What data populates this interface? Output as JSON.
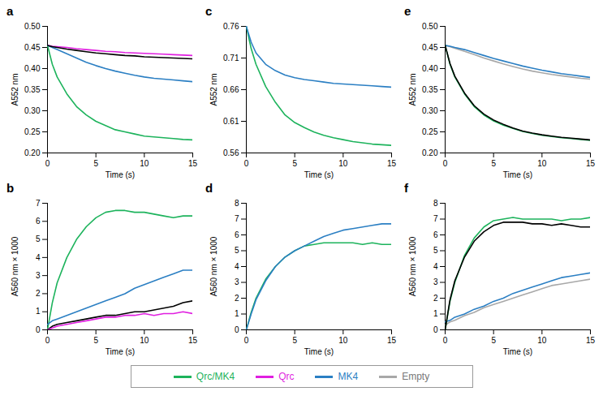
{
  "chart_data": [
    {
      "type": "line",
      "title": "a",
      "xlabel": "Time (s)",
      "ylabel": "A552 nm",
      "x": [
        0,
        0.5,
        1,
        2,
        3,
        4,
        5,
        6,
        7,
        8,
        9,
        10,
        11,
        12,
        13,
        14,
        15
      ],
      "xlim": [
        0,
        15
      ],
      "xticks": [
        0,
        5,
        10,
        15
      ],
      "ylim": [
        0.2,
        0.5
      ],
      "yticks": [
        {
          "value": 0.2,
          "label": "0.20"
        },
        0.25,
        {
          "value": 0.3,
          "label": "0.30"
        },
        0.35,
        {
          "value": 0.4,
          "label": "0.40"
        },
        0.45,
        {
          "value": 0.5,
          "label": "0.50"
        }
      ],
      "series": [
        {
          "name": "Qrc/MK4",
          "color": "#1db35c",
          "values": [
            0.455,
            0.41,
            0.38,
            0.34,
            0.31,
            0.29,
            0.275,
            0.265,
            0.255,
            0.25,
            0.245,
            0.24,
            0.238,
            0.236,
            0.234,
            0.232,
            0.231
          ]
        },
        {
          "name": "Qrc",
          "color": "#e01fe0",
          "values": [
            0.455,
            0.453,
            0.452,
            0.45,
            0.447,
            0.445,
            0.443,
            0.441,
            0.44,
            0.438,
            0.437,
            0.436,
            0.435,
            0.434,
            0.433,
            0.432,
            0.431
          ]
        },
        {
          "name": "MK4",
          "color": "#2b7fc3",
          "values": [
            0.455,
            0.45,
            0.445,
            0.435,
            0.425,
            0.415,
            0.407,
            0.4,
            0.394,
            0.389,
            0.384,
            0.38,
            0.377,
            0.375,
            0.373,
            0.371,
            0.369
          ]
        },
        {
          "color": "#000000",
          "values": [
            0.455,
            0.452,
            0.45,
            0.446,
            0.443,
            0.44,
            0.437,
            0.435,
            0.433,
            0.431,
            0.43,
            0.428,
            0.427,
            0.426,
            0.425,
            0.424,
            0.423
          ]
        }
      ]
    },
    {
      "type": "line",
      "title": "c",
      "xlabel": "Time (s)",
      "ylabel": "A552 nm",
      "x": [
        0,
        0.5,
        1,
        2,
        3,
        4,
        5,
        6,
        7,
        8,
        9,
        10,
        11,
        12,
        13,
        14,
        15
      ],
      "xlim": [
        0,
        15
      ],
      "xticks": [
        0,
        5,
        10,
        15
      ],
      "ylim": [
        0.56,
        0.76
      ],
      "yticks": [
        0.56,
        0.61,
        0.66,
        0.71,
        0.76
      ],
      "series": [
        {
          "name": "Qrc/MK4",
          "color": "#1db35c",
          "values": [
            0.76,
            0.725,
            0.7,
            0.665,
            0.64,
            0.62,
            0.608,
            0.6,
            0.593,
            0.588,
            0.584,
            0.581,
            0.578,
            0.576,
            0.574,
            0.573,
            0.572
          ]
        },
        {
          "name": "MK4",
          "color": "#2b7fc3",
          "values": [
            0.76,
            0.735,
            0.718,
            0.7,
            0.69,
            0.683,
            0.679,
            0.676,
            0.674,
            0.672,
            0.67,
            0.669,
            0.668,
            0.667,
            0.666,
            0.665,
            0.664
          ]
        }
      ]
    },
    {
      "type": "line",
      "title": "e",
      "xlabel": "Time (s)",
      "ylabel": "A552 nm",
      "x": [
        0,
        0.5,
        1,
        2,
        3,
        4,
        5,
        6,
        7,
        8,
        9,
        10,
        11,
        12,
        13,
        14,
        15
      ],
      "xlim": [
        0,
        15
      ],
      "xticks": [
        0,
        5,
        10,
        15
      ],
      "ylim": [
        0.2,
        0.5
      ],
      "yticks": [
        {
          "value": 0.2,
          "label": "0.20"
        },
        0.25,
        {
          "value": 0.3,
          "label": "0.30"
        },
        0.35,
        {
          "value": 0.4,
          "label": "0.40"
        },
        0.45,
        {
          "value": 0.5,
          "label": "0.50"
        }
      ],
      "series": [
        {
          "name": "Empty",
          "color": "#a8a8a8",
          "values": [
            0.455,
            0.452,
            0.448,
            0.441,
            0.433,
            0.425,
            0.418,
            0.411,
            0.405,
            0.399,
            0.394,
            0.39,
            0.386,
            0.383,
            0.38,
            0.377,
            0.375
          ]
        },
        {
          "name": "MK4",
          "color": "#2b7fc3",
          "values": [
            0.455,
            0.453,
            0.45,
            0.445,
            0.438,
            0.431,
            0.424,
            0.418,
            0.412,
            0.406,
            0.401,
            0.396,
            0.392,
            0.388,
            0.385,
            0.382,
            0.379
          ]
        },
        {
          "name": "Qrc/MK4",
          "color": "#1db35c",
          "values": [
            0.455,
            0.41,
            0.38,
            0.34,
            0.31,
            0.29,
            0.276,
            0.266,
            0.258,
            0.251,
            0.246,
            0.242,
            0.239,
            0.236,
            0.234,
            0.232,
            0.23
          ]
        },
        {
          "color": "#000000",
          "values": [
            0.455,
            0.412,
            0.382,
            0.342,
            0.312,
            0.292,
            0.278,
            0.268,
            0.259,
            0.252,
            0.247,
            0.243,
            0.24,
            0.237,
            0.235,
            0.233,
            0.231
          ]
        }
      ]
    },
    {
      "type": "line",
      "title": "b",
      "xlabel": "Time (s)",
      "ylabel": "A560 nm × 1000",
      "x": [
        0,
        0.5,
        1,
        2,
        3,
        4,
        5,
        6,
        7,
        8,
        9,
        10,
        11,
        12,
        13,
        14,
        15
      ],
      "xlim": [
        0,
        15
      ],
      "xticks": [
        0,
        5,
        10,
        15
      ],
      "ylim": [
        0,
        7
      ],
      "yticks": [
        0,
        1,
        2,
        3,
        4,
        5,
        6,
        7
      ],
      "series": [
        {
          "name": "Qrc/MK4",
          "color": "#1db35c",
          "values": [
            0,
            1.5,
            2.6,
            4.0,
            5.0,
            5.7,
            6.2,
            6.5,
            6.6,
            6.6,
            6.5,
            6.5,
            6.4,
            6.3,
            6.2,
            6.3,
            6.3
          ]
        },
        {
          "name": "MK4",
          "color": "#2b7fc3",
          "values": [
            0.3,
            0.5,
            0.6,
            0.8,
            1.0,
            1.2,
            1.4,
            1.6,
            1.8,
            2.0,
            2.3,
            2.5,
            2.7,
            2.9,
            3.1,
            3.3,
            3.3
          ]
        },
        {
          "color": "#000000",
          "values": [
            0,
            0.2,
            0.3,
            0.4,
            0.5,
            0.6,
            0.7,
            0.8,
            0.8,
            0.9,
            1.0,
            1.0,
            1.1,
            1.2,
            1.3,
            1.5,
            1.6
          ]
        },
        {
          "name": "Qrc",
          "color": "#e01fe0",
          "values": [
            0,
            0.1,
            0.2,
            0.3,
            0.4,
            0.5,
            0.6,
            0.7,
            0.7,
            0.8,
            0.8,
            0.9,
            0.8,
            0.9,
            0.9,
            1.0,
            0.9
          ]
        }
      ]
    },
    {
      "type": "line",
      "title": "d",
      "xlabel": "Time (s)",
      "ylabel": "A560 nm × 1000",
      "x": [
        0,
        0.5,
        1,
        2,
        3,
        4,
        5,
        6,
        7,
        8,
        9,
        10,
        11,
        12,
        13,
        14,
        15
      ],
      "xlim": [
        0,
        15
      ],
      "xticks": [
        0,
        5,
        10,
        15
      ],
      "ylim": [
        0,
        8
      ],
      "yticks": [
        0,
        1,
        2,
        3,
        4,
        5,
        6,
        7,
        8
      ],
      "series": [
        {
          "name": "Qrc/MK4",
          "color": "#1db35c",
          "values": [
            0,
            1.1,
            2.0,
            3.2,
            4.0,
            4.6,
            5.0,
            5.3,
            5.4,
            5.5,
            5.5,
            5.5,
            5.5,
            5.4,
            5.5,
            5.4,
            5.4
          ]
        },
        {
          "name": "MK4",
          "color": "#2b7fc3",
          "values": [
            0,
            1.0,
            1.9,
            3.1,
            4.0,
            4.6,
            5.0,
            5.3,
            5.6,
            5.9,
            6.1,
            6.3,
            6.4,
            6.5,
            6.6,
            6.7,
            6.7
          ]
        }
      ]
    },
    {
      "type": "line",
      "title": "f",
      "xlabel": "Time (s)",
      "ylabel": "A560 nm × 1000",
      "x": [
        0,
        0.5,
        1,
        2,
        3,
        4,
        5,
        6,
        7,
        8,
        9,
        10,
        11,
        12,
        13,
        14,
        15
      ],
      "xlim": [
        0,
        15
      ],
      "xticks": [
        0,
        5,
        10,
        15
      ],
      "ylim": [
        0,
        8
      ],
      "yticks": [
        0,
        1,
        2,
        3,
        4,
        5,
        6,
        7,
        8
      ],
      "series": [
        {
          "name": "Empty",
          "color": "#a8a8a8",
          "values": [
            0.3,
            0.5,
            0.6,
            0.9,
            1.1,
            1.4,
            1.6,
            1.8,
            2.0,
            2.2,
            2.4,
            2.6,
            2.8,
            2.9,
            3.0,
            3.1,
            3.2
          ]
        },
        {
          "name": "MK4",
          "color": "#2b7fc3",
          "values": [
            0.5,
            0.6,
            0.8,
            1.0,
            1.3,
            1.5,
            1.8,
            2.0,
            2.3,
            2.5,
            2.7,
            2.9,
            3.1,
            3.3,
            3.4,
            3.5,
            3.6
          ]
        },
        {
          "name": "Qrc/MK4",
          "color": "#1db35c",
          "values": [
            0,
            1.8,
            3.0,
            4.7,
            5.8,
            6.5,
            6.9,
            7.0,
            7.1,
            7.0,
            7.0,
            7.0,
            7.0,
            6.9,
            7.0,
            7.0,
            7.1
          ]
        },
        {
          "color": "#000000",
          "values": [
            0,
            1.9,
            3.1,
            4.6,
            5.6,
            6.2,
            6.6,
            6.8,
            6.8,
            6.8,
            6.7,
            6.7,
            6.6,
            6.7,
            6.6,
            6.5,
            6.5
          ]
        }
      ]
    }
  ]
}
